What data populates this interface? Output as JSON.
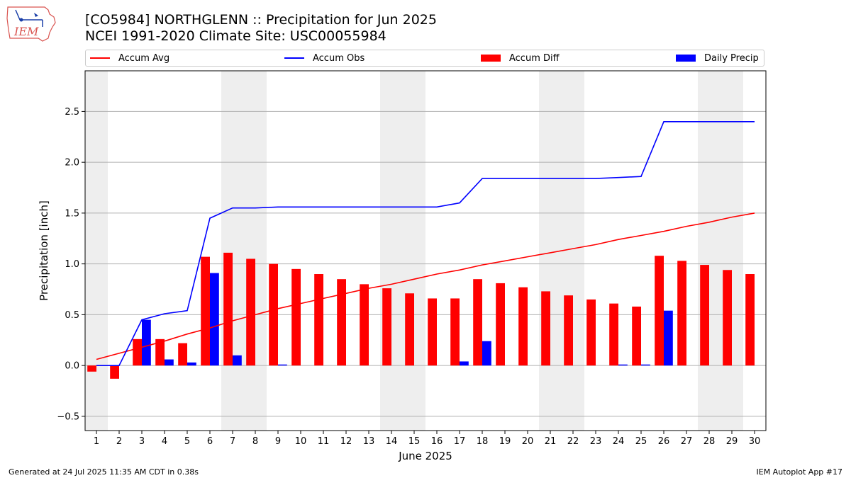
{
  "header": {
    "title_line1": "[CO5984] NORTHGLENN :: Precipitation for Jun 2025",
    "title_line2": "NCEI 1991-2020 Climate Site: USC00055984",
    "logo_text": "IEM"
  },
  "footer": {
    "generated": "Generated at 24 Jul 2025 11:35 AM CDT in 0.38s",
    "app": "IEM Autoplot App #17"
  },
  "legend": [
    {
      "label": "Accum Avg",
      "kind": "line",
      "color": "#ff0000"
    },
    {
      "label": "Accum Obs",
      "kind": "line",
      "color": "#0000ff"
    },
    {
      "label": "Accum Diff",
      "kind": "bar",
      "color": "#ff0000"
    },
    {
      "label": "Daily Precip",
      "kind": "bar",
      "color": "#0000ff"
    }
  ],
  "chart_data": {
    "type": "bar",
    "title": "[CO5984] NORTHGLENN :: Precipitation for Jun 2025",
    "subtitle": "NCEI 1991-2020 Climate Site: USC00055984",
    "xlabel": "June 2025",
    "ylabel": "Precipitation [inch]",
    "ylim": [
      -0.64,
      2.9
    ],
    "xlim": [
      0.5,
      30.5
    ],
    "yticks": [
      -0.5,
      0.0,
      0.5,
      1.0,
      1.5,
      2.0,
      2.5
    ],
    "ytick_labels": [
      "−0.5",
      "0.0",
      "0.5",
      "1.0",
      "1.5",
      "2.0",
      "2.5"
    ],
    "x": [
      1,
      2,
      3,
      4,
      5,
      6,
      7,
      8,
      9,
      10,
      11,
      12,
      13,
      14,
      15,
      16,
      17,
      18,
      19,
      20,
      21,
      22,
      23,
      24,
      25,
      26,
      27,
      28,
      29,
      30
    ],
    "xtick_labels": [
      "1",
      "2",
      "3",
      "4",
      "5",
      "6",
      "7",
      "8",
      "9",
      "10",
      "11",
      "12",
      "13",
      "14",
      "15",
      "16",
      "17",
      "18",
      "19",
      "20",
      "21",
      "22",
      "23",
      "24",
      "25",
      "26",
      "27",
      "28",
      "29",
      "30"
    ],
    "grid": "horizontal",
    "legend_position": "top",
    "weekend_shading": [
      [
        0.5,
        1.5
      ],
      [
        6.5,
        8.5
      ],
      [
        13.5,
        15.5
      ],
      [
        20.5,
        22.5
      ],
      [
        27.5,
        29.5
      ]
    ],
    "series": [
      {
        "name": "Accum Avg",
        "kind": "line",
        "color": "#ff0000",
        "values": [
          0.06,
          0.12,
          0.18,
          0.24,
          0.31,
          0.37,
          0.44,
          0.5,
          0.56,
          0.61,
          0.66,
          0.71,
          0.76,
          0.8,
          0.85,
          0.9,
          0.94,
          0.99,
          1.03,
          1.07,
          1.11,
          1.15,
          1.19,
          1.24,
          1.28,
          1.32,
          1.37,
          1.41,
          1.46,
          1.5
        ]
      },
      {
        "name": "Accum Obs",
        "kind": "line",
        "color": "#0000ff",
        "values": [
          0.0,
          0.0,
          0.45,
          0.51,
          0.54,
          1.45,
          1.55,
          1.55,
          1.56,
          1.56,
          1.56,
          1.56,
          1.56,
          1.56,
          1.56,
          1.56,
          1.6,
          1.84,
          1.84,
          1.84,
          1.84,
          1.84,
          1.84,
          1.85,
          1.86,
          2.4,
          2.4,
          2.4,
          2.4,
          2.4
        ]
      },
      {
        "name": "Accum Diff",
        "kind": "bar",
        "color": "#ff0000",
        "values": [
          -0.06,
          -0.13,
          0.26,
          0.26,
          0.22,
          1.07,
          1.11,
          1.05,
          1.0,
          0.95,
          0.9,
          0.85,
          0.8,
          0.76,
          0.71,
          0.66,
          0.66,
          0.85,
          0.81,
          0.77,
          0.73,
          0.69,
          0.65,
          0.61,
          0.58,
          1.08,
          1.03,
          0.99,
          0.94,
          0.9
        ]
      },
      {
        "name": "Daily Precip",
        "kind": "bar",
        "color": "#0000ff",
        "values": [
          0.0,
          0.0,
          0.45,
          0.06,
          0.03,
          0.91,
          0.1,
          0.0,
          0.01,
          0.0,
          0.0,
          0.0,
          0.0,
          0.0,
          0.0,
          0.0,
          0.04,
          0.24,
          0.0,
          0.0,
          0.0,
          0.0,
          0.0,
          0.01,
          0.01,
          0.54,
          0.0,
          0.0,
          0.0,
          0.0
        ]
      }
    ]
  }
}
